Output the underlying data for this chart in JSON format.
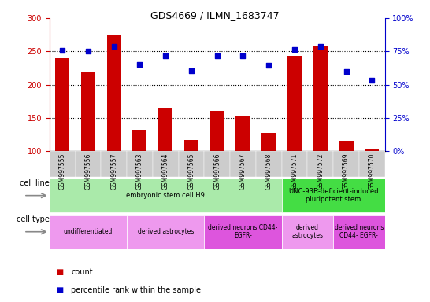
{
  "title": "GDS4669 / ILMN_1683747",
  "samples": [
    "GSM997555",
    "GSM997556",
    "GSM997557",
    "GSM997563",
    "GSM997564",
    "GSM997565",
    "GSM997566",
    "GSM997567",
    "GSM997568",
    "GSM997571",
    "GSM997572",
    "GSM997569",
    "GSM997570"
  ],
  "counts": [
    240,
    218,
    275,
    132,
    165,
    116,
    160,
    153,
    127,
    243,
    258,
    115,
    103
  ],
  "percentiles": [
    251,
    250,
    258,
    230,
    243,
    221,
    243,
    243,
    229,
    253,
    257,
    219,
    206
  ],
  "ylim_left": [
    100,
    300
  ],
  "ylim_right": [
    0,
    100
  ],
  "y_ticks_left": [
    100,
    150,
    200,
    250,
    300
  ],
  "y_ticks_right": [
    0,
    25,
    50,
    75,
    100
  ],
  "bar_color": "#cc0000",
  "scatter_color": "#0000cc",
  "dotted_line_vals": [
    150,
    200,
    250
  ],
  "cell_line_groups": [
    {
      "label": "embryonic stem cell H9",
      "start": 0,
      "end": 9,
      "color": "#aaeaaa"
    },
    {
      "label": "UNC-93B-deficient-induced\npluripotent stem",
      "start": 9,
      "end": 13,
      "color": "#44dd44"
    }
  ],
  "cell_type_groups": [
    {
      "label": "undifferentiated",
      "start": 0,
      "end": 3,
      "color": "#ee99ee"
    },
    {
      "label": "derived astrocytes",
      "start": 3,
      "end": 6,
      "color": "#ee99ee"
    },
    {
      "label": "derived neurons CD44-\nEGFR-",
      "start": 6,
      "end": 9,
      "color": "#dd55dd"
    },
    {
      "label": "derived\nastrocytes",
      "start": 9,
      "end": 11,
      "color": "#ee99ee"
    },
    {
      "label": "derived neurons\nCD44- EGFR-",
      "start": 11,
      "end": 13,
      "color": "#dd55dd"
    }
  ],
  "left_tick_color": "#cc0000",
  "right_tick_color": "#0000cc",
  "xtick_bg_color": "#cccccc",
  "legend_items": [
    {
      "color": "#cc0000",
      "label": "count"
    },
    {
      "color": "#0000cc",
      "label": "percentile rank within the sample"
    }
  ]
}
